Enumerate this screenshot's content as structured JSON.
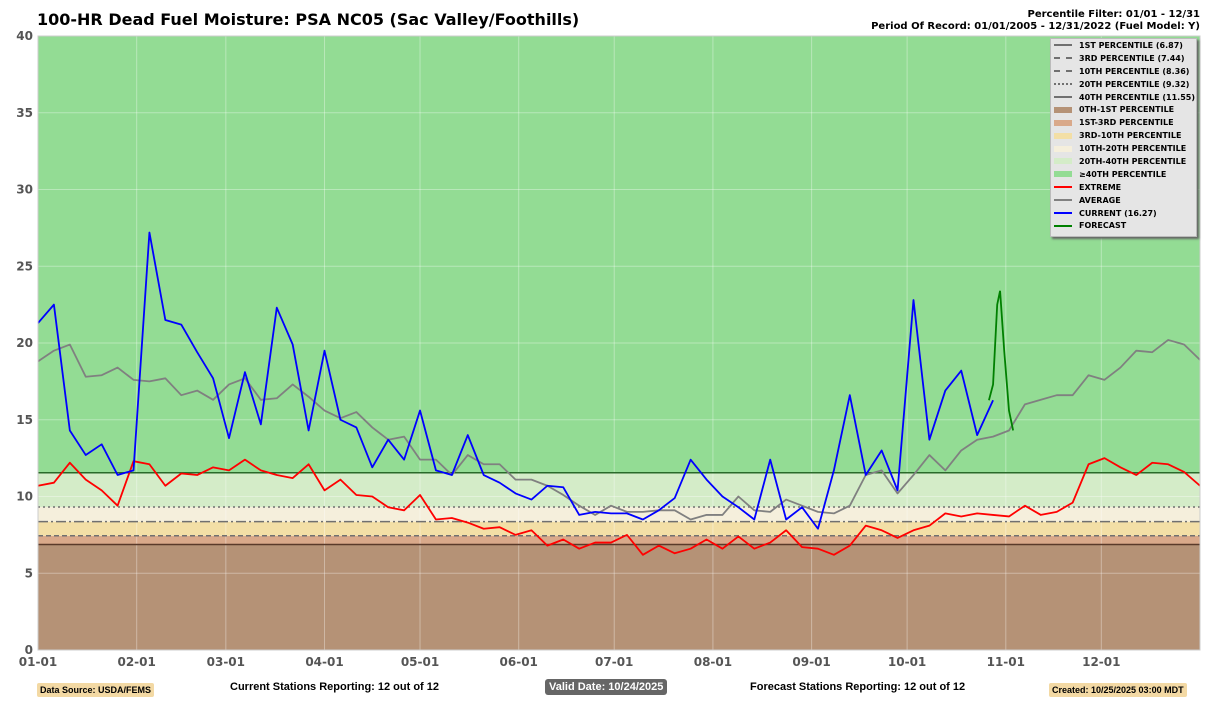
{
  "header": {
    "title": "100-HR Dead Fuel Moisture: PSA NC05 (Sac Valley/Foothills)",
    "filter": "Percentile Filter: 01/01 - 12/31",
    "period": "Period Of Record: 01/01/2005 - 12/31/2022 (Fuel Model: Y)"
  },
  "footer": {
    "source": "Data Source: USDA/FEMS",
    "current_stations": "Current Stations Reporting: 12 out of 12",
    "valid": "Valid Date: 10/24/2025",
    "forecast_stations": "Forecast Stations Reporting: 12 out of 12",
    "created": "Created: 10/25/2025 03:00 MDT"
  },
  "legend": [
    {
      "label": "1ST PERCENTILE (6.87)",
      "kind": "line",
      "color": "#707070",
      "dash": ""
    },
    {
      "label": "3RD PERCENTILE (7.44)",
      "kind": "line",
      "color": "#707070",
      "dash": "5,3"
    },
    {
      "label": "10TH PERCENTILE (8.36)",
      "kind": "line",
      "color": "#707070",
      "dash": "10,3,2,3"
    },
    {
      "label": "20TH PERCENTILE (9.32)",
      "kind": "line",
      "color": "#707070",
      "dash": "2,3"
    },
    {
      "label": "40TH PERCENTILE (11.55)",
      "kind": "line",
      "color": "#707070",
      "dash": ""
    },
    {
      "label": "0TH-1ST PERCENTILE",
      "kind": "band",
      "color": "#b59276"
    },
    {
      "label": "1ST-3RD PERCENTILE",
      "kind": "band",
      "color": "#d9a98a"
    },
    {
      "label": "3RD-10TH PERCENTILE",
      "kind": "band",
      "color": "#f3dfa6"
    },
    {
      "label": "10TH-20TH PERCENTILE",
      "kind": "band",
      "color": "#f5efdc"
    },
    {
      "label": "20TH-40TH PERCENTILE",
      "kind": "band",
      "color": "#d4ecc8"
    },
    {
      "label": "≥40TH PERCENTILE",
      "kind": "band",
      "color": "#93dc94"
    },
    {
      "label": "EXTREME",
      "kind": "line",
      "color": "#ff0000",
      "dash": ""
    },
    {
      "label": "AVERAGE",
      "kind": "line",
      "color": "#808080",
      "dash": ""
    },
    {
      "label": "CURRENT (16.27)",
      "kind": "line",
      "color": "#0000ff",
      "dash": ""
    },
    {
      "label": "FORECAST",
      "kind": "line",
      "color": "#008000",
      "dash": ""
    }
  ],
  "chart_data": {
    "type": "line",
    "title": "100-HR Dead Fuel Moisture: PSA NC05 (Sac Valley/Foothills)",
    "xlim": [
      0,
      365
    ],
    "ylim": [
      0,
      40
    ],
    "yticks": [
      0,
      5,
      10,
      15,
      20,
      25,
      30,
      35,
      40
    ],
    "xticks": [
      {
        "day": 0,
        "label": "01-01"
      },
      {
        "day": 31,
        "label": "02-01"
      },
      {
        "day": 59,
        "label": "03-01"
      },
      {
        "day": 90,
        "label": "04-01"
      },
      {
        "day": 120,
        "label": "05-01"
      },
      {
        "day": 151,
        "label": "06-01"
      },
      {
        "day": 181,
        "label": "07-01"
      },
      {
        "day": 212,
        "label": "08-01"
      },
      {
        "day": 243,
        "label": "09-01"
      },
      {
        "day": 273,
        "label": "10-01"
      },
      {
        "day": 304,
        "label": "11-01"
      },
      {
        "day": 334,
        "label": "12-01"
      }
    ],
    "percentiles": [
      6.87,
      7.44,
      8.36,
      9.32,
      11.55
    ],
    "step_days": 5,
    "series": [
      {
        "name": "AVERAGE",
        "color": "#808080",
        "values": [
          18.8,
          19.5,
          19.9,
          17.8,
          17.9,
          18.4,
          17.6,
          17.5,
          17.7,
          16.6,
          16.9,
          16.3,
          17.3,
          17.7,
          16.3,
          16.4,
          17.3,
          16.5,
          15.6,
          15.1,
          15.5,
          14.5,
          13.7,
          13.9,
          12.4,
          12.4,
          11.4,
          12.7,
          12.1,
          12.1,
          11.1,
          11.1,
          10.7,
          10.1,
          9.4,
          8.8,
          9.4,
          9.0,
          9.0,
          9.1,
          9.1,
          8.5,
          8.8,
          8.8,
          10.0,
          9.1,
          9.0,
          9.8,
          9.4,
          9.0,
          8.9,
          9.4,
          11.4,
          11.7,
          10.2,
          11.4,
          12.7,
          11.7,
          13.0,
          13.7,
          13.9,
          14.3,
          16.0,
          16.3,
          16.6,
          16.6,
          17.9,
          17.6,
          18.4,
          19.5,
          19.4,
          20.2,
          19.9,
          18.9
        ]
      },
      {
        "name": "EXTREME",
        "color": "#ff0000",
        "values": [
          10.7,
          10.9,
          12.2,
          11.1,
          10.4,
          9.4,
          12.3,
          12.1,
          10.7,
          11.5,
          11.4,
          11.9,
          11.7,
          12.4,
          11.7,
          11.4,
          11.2,
          12.1,
          10.4,
          11.1,
          10.1,
          10.0,
          9.3,
          9.1,
          10.1,
          8.5,
          8.6,
          8.3,
          7.9,
          8.0,
          7.5,
          7.8,
          6.8,
          7.2,
          6.6,
          7.0,
          7.0,
          7.5,
          6.2,
          6.8,
          6.3,
          6.6,
          7.2,
          6.6,
          7.4,
          6.6,
          7.0,
          7.8,
          6.7,
          6.6,
          6.2,
          6.8,
          8.1,
          7.8,
          7.3,
          7.8,
          8.1,
          8.9,
          8.7,
          8.9,
          8.8,
          8.7,
          9.4,
          8.8,
          9.0,
          9.6,
          12.1,
          12.5,
          11.9,
          11.4,
          12.2,
          12.1,
          11.6,
          10.7
        ]
      },
      {
        "name": "CURRENT",
        "color": "#0000ff",
        "values": [
          21.3,
          22.5,
          14.3,
          12.7,
          13.4,
          11.4,
          11.7,
          27.2,
          21.5,
          21.2,
          19.4,
          17.7,
          13.8,
          18.1,
          14.7,
          22.3,
          19.9,
          14.3,
          19.5,
          15.0,
          14.5,
          11.9,
          13.7,
          12.4,
          15.6,
          11.7,
          11.4,
          14.0,
          11.4,
          10.9,
          10.2,
          9.8,
          10.7,
          10.6,
          8.8,
          9.0,
          8.9,
          8.9,
          8.5,
          9.1,
          9.9,
          12.4,
          11.1,
          10.0,
          9.3,
          8.5,
          12.4,
          8.5,
          9.3,
          7.9,
          11.7,
          16.6,
          11.4,
          13.0,
          10.4,
          22.8,
          13.7,
          16.9,
          18.2,
          14.0,
          16.27
        ]
      }
    ],
    "forecast": {
      "name": "FORECAST",
      "color": "#008000",
      "days": [
        298.7,
        300,
        301.3,
        302.2,
        303.5,
        305,
        306.3
      ],
      "values": [
        16.27,
        17.3,
        22.5,
        23.4,
        19.5,
        15.6,
        14.3
      ]
    }
  }
}
